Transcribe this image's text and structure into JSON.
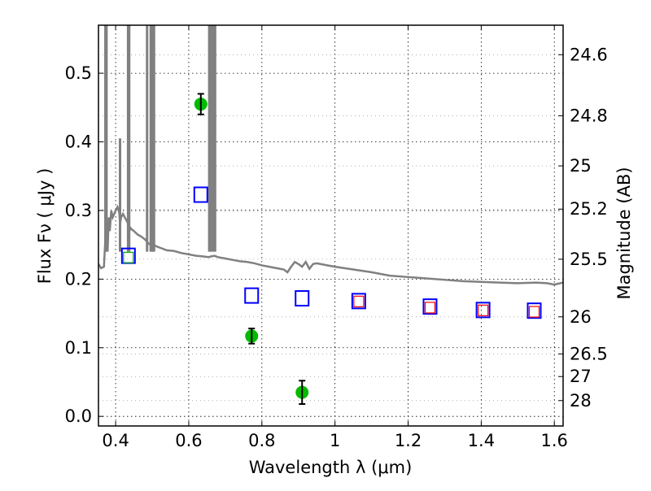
{
  "chart_data": {
    "type": "scatter",
    "title": "",
    "xlabel": "Wavelength  λ (μm)",
    "ylabel": "Flux  Fν  ( μJy )",
    "ylabel_right": "Magnitude (AB)",
    "xlim": [
      0.353,
      1.624
    ],
    "ylim": [
      -0.014,
      0.57
    ],
    "grid": true,
    "x_ticks": [
      0.4,
      0.6,
      0.8,
      1.0,
      1.2,
      1.4,
      1.6
    ],
    "x_tick_labels": [
      "0.4",
      "0.6",
      "0.8",
      "1",
      "1.2",
      "1.4",
      "1.6"
    ],
    "y_ticks": [
      0.0,
      0.1,
      0.2,
      0.3,
      0.4,
      0.5
    ],
    "y_tick_labels": [
      "0.0",
      "0.1",
      "0.2",
      "0.3",
      "0.4",
      "0.5"
    ],
    "right_ticks": [
      {
        "label": "24.6",
        "flux": 0.527
      },
      {
        "label": "24.8",
        "flux": 0.438
      },
      {
        "label": "25",
        "flux": 0.365
      },
      {
        "label": "25.2",
        "flux": 0.302
      },
      {
        "label": "25.5",
        "flux": 0.229
      },
      {
        "label": "26",
        "flux": 0.145
      },
      {
        "label": "26.5",
        "flux": 0.091
      },
      {
        "label": "27",
        "flux": 0.058
      },
      {
        "label": "28",
        "flux": 0.023
      }
    ],
    "series": [
      {
        "name": "model-spectrum",
        "kind": "line",
        "color": "#808080",
        "x": [
          0.353,
          0.36,
          0.368,
          0.372,
          0.375,
          0.378,
          0.381,
          0.384,
          0.388,
          0.392,
          0.396,
          0.4,
          0.405,
          0.41,
          0.412,
          0.415,
          0.42,
          0.425,
          0.43,
          0.435,
          0.438,
          0.44,
          0.445,
          0.45,
          0.46,
          0.47,
          0.48,
          0.49,
          0.495,
          0.5,
          0.505,
          0.51,
          0.52,
          0.54,
          0.56,
          0.58,
          0.6,
          0.62,
          0.64,
          0.655,
          0.66,
          0.67,
          0.68,
          0.7,
          0.72,
          0.74,
          0.76,
          0.78,
          0.8,
          0.82,
          0.84,
          0.86,
          0.87,
          0.88,
          0.89,
          0.9,
          0.91,
          0.92,
          0.93,
          0.94,
          0.95,
          0.96,
          0.97,
          0.98,
          1.0,
          1.05,
          1.1,
          1.15,
          1.2,
          1.25,
          1.3,
          1.35,
          1.4,
          1.45,
          1.5,
          1.55,
          1.58,
          1.6,
          1.624
        ],
        "y": [
          0.222,
          0.216,
          0.218,
          0.26,
          0.285,
          0.24,
          0.29,
          0.27,
          0.3,
          0.29,
          0.295,
          0.3,
          0.305,
          0.297,
          0.28,
          0.29,
          0.295,
          0.29,
          0.285,
          0.28,
          0.27,
          0.275,
          0.272,
          0.27,
          0.265,
          0.262,
          0.258,
          0.252,
          0.25,
          0.252,
          0.25,
          0.248,
          0.246,
          0.242,
          0.241,
          0.238,
          0.236,
          0.234,
          0.233,
          0.232,
          0.233,
          0.234,
          0.232,
          0.23,
          0.228,
          0.226,
          0.225,
          0.223,
          0.22,
          0.218,
          0.216,
          0.214,
          0.21,
          0.218,
          0.225,
          0.222,
          0.218,
          0.225,
          0.215,
          0.222,
          0.223,
          0.222,
          0.221,
          0.22,
          0.218,
          0.214,
          0.21,
          0.205,
          0.203,
          0.201,
          0.199,
          0.197,
          0.196,
          0.195,
          0.194,
          0.195,
          0.194,
          0.192,
          0.195
        ]
      },
      {
        "name": "observed-flux",
        "kind": "errorbar",
        "color": "#00bb00",
        "x": [
          0.633,
          0.772,
          0.91
        ],
        "y": [
          0.455,
          0.117,
          0.035
        ],
        "yerr": [
          0.015,
          0.011,
          0.017
        ]
      },
      {
        "name": "model-photometry",
        "kind": "open-square",
        "color": "#0000ff",
        "x": [
          0.435,
          0.633,
          0.772,
          0.91,
          1.065,
          1.26,
          1.405,
          1.545
        ],
        "y": [
          0.234,
          0.323,
          0.176,
          0.172,
          0.168,
          0.16,
          0.155,
          0.154
        ]
      },
      {
        "name": "inner-green-square",
        "kind": "open-square-small",
        "color": "#00aa00",
        "x": [
          0.435
        ],
        "y": [
          0.232
        ]
      },
      {
        "name": "inner-red-squares",
        "kind": "open-square-small",
        "color": "#ff0000",
        "x": [
          1.065,
          1.26,
          1.405,
          1.545
        ],
        "y": [
          0.168,
          0.159,
          0.155,
          0.153
        ]
      }
    ],
    "emission_lines": [
      {
        "x": 0.372,
        "ytop": 0.57
      },
      {
        "x": 0.375,
        "ytop": 0.57
      },
      {
        "x": 0.412,
        "ytop": 0.405
      },
      {
        "x": 0.434,
        "ytop": 0.57
      },
      {
        "x": 0.437,
        "ytop": 0.57
      },
      {
        "x": 0.486,
        "ytop": 0.57
      },
      {
        "x": 0.496,
        "ytop": 0.57
      },
      {
        "x": 0.501,
        "ytop": 0.57
      },
      {
        "x": 0.505,
        "ytop": 0.57
      },
      {
        "x": 0.656,
        "ytop": 0.57
      },
      {
        "x": 0.66,
        "ytop": 0.57
      },
      {
        "x": 0.666,
        "ytop": 0.57
      },
      {
        "x": 0.672,
        "ytop": 0.57
      }
    ]
  }
}
